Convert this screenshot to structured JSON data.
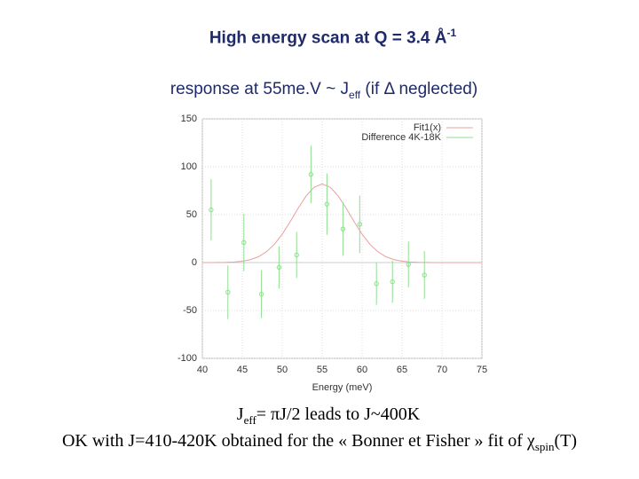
{
  "slide": {
    "title": [
      "High energy scan at Q = 3.4 Å",
      "-1"
    ],
    "subtitle": [
      "response at 55me.V ~ J",
      "eff",
      " (if Δ neglected)"
    ],
    "note1": [
      "J",
      "eff",
      "= πJ/2 leads to J~400K"
    ],
    "note2": [
      "OK with J=410-420K obtained for the « Bonner et Fisher » fit of  χ",
      "spin",
      "(T)"
    ]
  },
  "chart_data": {
    "type": "scatter",
    "x_label": "Energy (meV)",
    "xlim": [
      40,
      75
    ],
    "xticks": [
      40,
      45,
      50,
      55,
      60,
      65,
      70,
      75
    ],
    "ylim": [
      -100,
      150
    ],
    "yticks": [
      -100,
      -50,
      0,
      50,
      100,
      150
    ],
    "grid": true,
    "legend": "top-right",
    "series": [
      {
        "name": "Fit1(x)",
        "color": "#e8a0a0",
        "kind": "line",
        "x": [
          40,
          41,
          42,
          43,
          44,
          45,
          46,
          47,
          48,
          49,
          50,
          51,
          52,
          53,
          54,
          55,
          56,
          57,
          58,
          59,
          60,
          61,
          62,
          63,
          64,
          65,
          66,
          67,
          68,
          69,
          70,
          71,
          72,
          73,
          74,
          75
        ],
        "values": [
          0,
          0,
          0.1,
          0.2,
          0.6,
          1.4,
          3.0,
          6.0,
          11.1,
          18.9,
          29.6,
          42.7,
          56.8,
          69.6,
          78.7,
          82,
          78.7,
          69.6,
          56.8,
          42.7,
          29.6,
          18.9,
          11.1,
          6.0,
          3.0,
          1.4,
          0.6,
          0.2,
          0.1,
          0,
          0,
          0,
          0,
          0,
          0,
          0
        ]
      },
      {
        "name": "Difference 4K-18K",
        "color": "#90dd90",
        "kind": "points",
        "x": [
          41.1,
          43.2,
          45.2,
          47.4,
          49.6,
          51.8,
          53.6,
          55.6,
          57.6,
          59.7,
          61.8,
          63.8,
          65.8,
          67.8
        ],
        "values": [
          55,
          -31,
          21,
          -33,
          -5,
          8,
          92,
          61,
          35,
          40,
          -22,
          -20,
          -2,
          -13
        ],
        "errors": [
          32,
          28,
          30,
          25,
          22,
          24,
          30,
          32,
          28,
          30,
          22,
          22,
          24,
          25
        ]
      }
    ]
  }
}
